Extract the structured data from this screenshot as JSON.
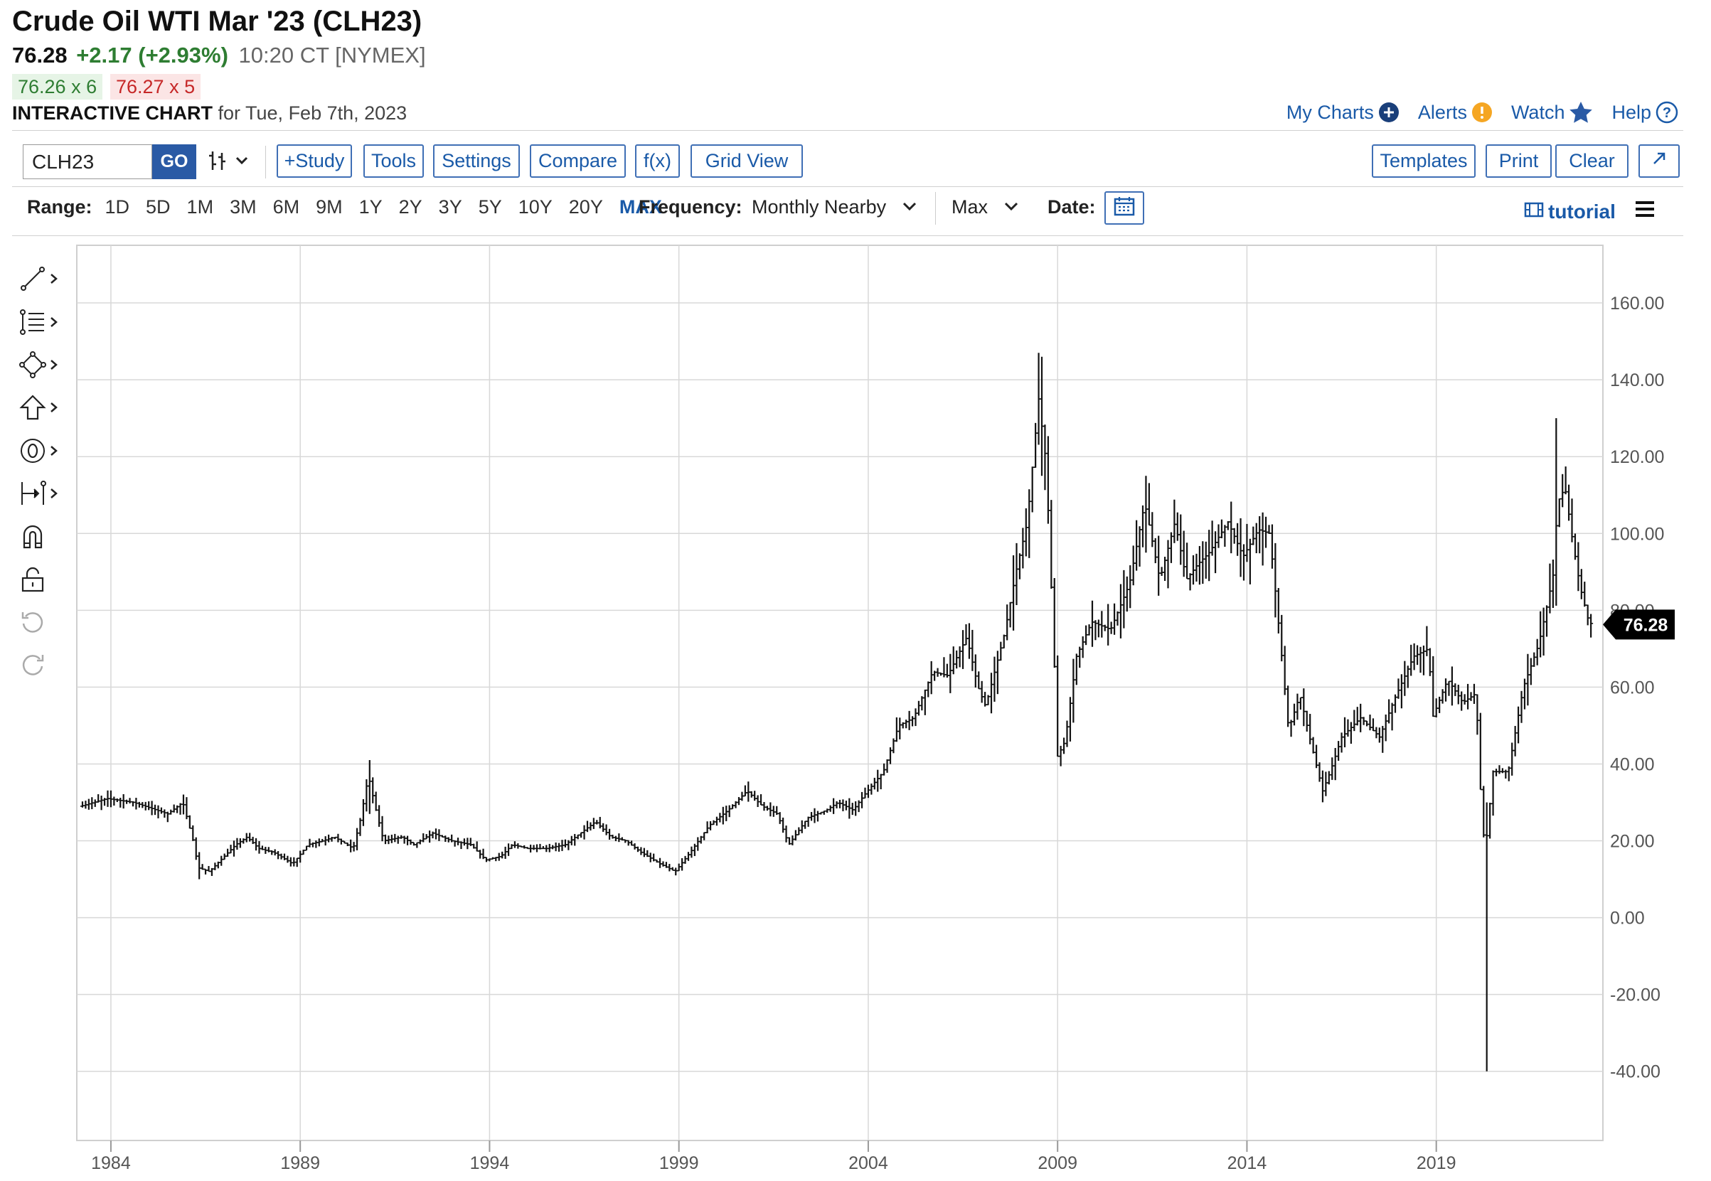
{
  "header": {
    "title": "Crude Oil WTI Mar '23 (CLH23)",
    "last": "76.28",
    "change": "+2.17 (+2.93%)",
    "time": "10:20 CT [NYMEX]",
    "bid": "76.26 x 6",
    "ask": "76.27 x 5",
    "interactive_label": "INTERACTIVE CHART",
    "interactive_date": "for Tue, Feb 7th, 2023"
  },
  "top_links": {
    "my_charts": "My Charts",
    "alerts": "Alerts",
    "watch": "Watch",
    "help": "Help"
  },
  "toolbar": {
    "symbol": "CLH23",
    "go": "GO",
    "study": "+Study",
    "tools": "Tools",
    "settings": "Settings",
    "compare": "Compare",
    "fx": "f(x)",
    "grid_view": "Grid View",
    "templates": "Templates",
    "print": "Print",
    "clear": "Clear"
  },
  "range_bar": {
    "label": "Range:",
    "ranges": [
      "1D",
      "5D",
      "1M",
      "3M",
      "6M",
      "9M",
      "1Y",
      "2Y",
      "3Y",
      "5Y",
      "10Y",
      "20Y",
      "MAX"
    ],
    "active": "MAX",
    "frequency_label": "Frequency:",
    "frequency_value": "Monthly Nearby",
    "max_value": "Max",
    "date_label": "Date:",
    "tutorial": "tutorial"
  },
  "drawing_tools": [
    "line-tool-icon",
    "fibonacci-tool-icon",
    "shapes-tool-icon",
    "arrow-tool-icon",
    "annotation-tool-icon",
    "measure-tool-icon",
    "magnet-icon",
    "lock-icon",
    "undo-icon",
    "redo-icon"
  ],
  "colors": {
    "accent": "#1a5aa8",
    "up": "#2e7d32",
    "down": "#c62828",
    "bars": "#111111",
    "grid": "#d8d8d8"
  },
  "chart_data": {
    "type": "ohlc",
    "frequency": "monthly",
    "x_tick_labels": [
      "1984",
      "1989",
      "1994",
      "1999",
      "2004",
      "2009",
      "2014",
      "2019"
    ],
    "y_tick_labels": [
      "160.00",
      "140.00",
      "120.00",
      "100.00",
      "80.00",
      "60.00",
      "40.00",
      "20.00",
      "0.00",
      "-20.00",
      "-40.00"
    ],
    "ylim": [
      -58,
      175
    ],
    "xlim": [
      1983.1,
      2023.4
    ],
    "last_price": "76.28",
    "grid": true,
    "anchors": [
      [
        1983.2,
        29
      ],
      [
        1983.9,
        31
      ],
      [
        1984.6,
        30
      ],
      [
        1985.2,
        28
      ],
      [
        1985.5,
        27
      ],
      [
        1985.9,
        30
      ],
      [
        1986.2,
        19
      ],
      [
        1986.3,
        13
      ],
      [
        1986.6,
        12
      ],
      [
        1986.9,
        15
      ],
      [
        1987.3,
        19
      ],
      [
        1987.6,
        21
      ],
      [
        1987.9,
        18
      ],
      [
        1988.3,
        17
      ],
      [
        1988.8,
        14
      ],
      [
        1989.2,
        19
      ],
      [
        1989.6,
        20
      ],
      [
        1989.9,
        21
      ],
      [
        1990.4,
        18
      ],
      [
        1990.6,
        26
      ],
      [
        1990.8,
        37
      ],
      [
        1991.0,
        28
      ],
      [
        1991.2,
        20
      ],
      [
        1991.7,
        21
      ],
      [
        1992.0,
        19
      ],
      [
        1992.5,
        22
      ],
      [
        1993.0,
        20
      ],
      [
        1993.5,
        19
      ],
      [
        1993.9,
        15
      ],
      [
        1994.3,
        16
      ],
      [
        1994.6,
        19
      ],
      [
        1995.0,
        18
      ],
      [
        1995.5,
        18
      ],
      [
        1996.0,
        19
      ],
      [
        1996.4,
        22
      ],
      [
        1996.8,
        25
      ],
      [
        1997.2,
        21
      ],
      [
        1997.6,
        20
      ],
      [
        1998.0,
        17
      ],
      [
        1998.5,
        14
      ],
      [
        1998.9,
        12
      ],
      [
        1999.3,
        17
      ],
      [
        1999.8,
        24
      ],
      [
        2000.3,
        28
      ],
      [
        2000.8,
        33
      ],
      [
        2001.2,
        29
      ],
      [
        2001.6,
        27
      ],
      [
        2001.9,
        19
      ],
      [
        2002.4,
        26
      ],
      [
        2002.9,
        28
      ],
      [
        2003.2,
        30
      ],
      [
        2003.6,
        28
      ],
      [
        2003.9,
        32
      ],
      [
        2004.4,
        38
      ],
      [
        2004.8,
        50
      ],
      [
        2005.2,
        52
      ],
      [
        2005.7,
        64
      ],
      [
        2006.1,
        63
      ],
      [
        2006.6,
        73
      ],
      [
        2006.9,
        60
      ],
      [
        2007.1,
        55
      ],
      [
        2007.6,
        74
      ],
      [
        2007.9,
        90
      ],
      [
        2008.2,
        103
      ],
      [
        2008.5,
        135
      ],
      [
        2008.7,
        118
      ],
      [
        2008.9,
        70
      ],
      [
        2009.0,
        42
      ],
      [
        2009.2,
        46
      ],
      [
        2009.5,
        68
      ],
      [
        2009.9,
        77
      ],
      [
        2010.4,
        75
      ],
      [
        2010.9,
        87
      ],
      [
        2011.3,
        108
      ],
      [
        2011.7,
        88
      ],
      [
        2012.1,
        103
      ],
      [
        2012.4,
        88
      ],
      [
        2012.7,
        92
      ],
      [
        2013.0,
        95
      ],
      [
        2013.5,
        103
      ],
      [
        2013.9,
        94
      ],
      [
        2014.3,
        101
      ],
      [
        2014.6,
        100
      ],
      [
        2014.9,
        70
      ],
      [
        2015.1,
        49
      ],
      [
        2015.4,
        58
      ],
      [
        2015.7,
        45
      ],
      [
        2016.0,
        33
      ],
      [
        2016.2,
        38
      ],
      [
        2016.5,
        47
      ],
      [
        2017.0,
        52
      ],
      [
        2017.5,
        47
      ],
      [
        2017.9,
        57
      ],
      [
        2018.4,
        68
      ],
      [
        2018.8,
        70
      ],
      [
        2018.9,
        52
      ],
      [
        2019.3,
        62
      ],
      [
        2019.7,
        56
      ],
      [
        2020.0,
        58
      ],
      [
        2020.1,
        50
      ],
      [
        2020.2,
        25
      ],
      [
        2020.3,
        18
      ],
      [
        2020.5,
        38
      ],
      [
        2020.9,
        38
      ],
      [
        2021.3,
        60
      ],
      [
        2021.7,
        71
      ],
      [
        2021.9,
        80
      ],
      [
        2022.1,
        90
      ],
      [
        2022.2,
        108
      ],
      [
        2022.4,
        112
      ],
      [
        2022.6,
        98
      ],
      [
        2022.8,
        86
      ],
      [
        2023.0,
        78
      ],
      [
        2023.1,
        76.3
      ]
    ],
    "extremes": [
      [
        2008.5,
        147,
        125
      ],
      [
        2008.6,
        146,
        115
      ],
      [
        2020.3,
        30,
        -40
      ],
      [
        2022.2,
        130,
        92
      ],
      [
        2011.3,
        115,
        95
      ],
      [
        1990.8,
        41,
        27
      ],
      [
        1986.3,
        16,
        10
      ],
      [
        1998.9,
        13,
        11
      ]
    ]
  }
}
